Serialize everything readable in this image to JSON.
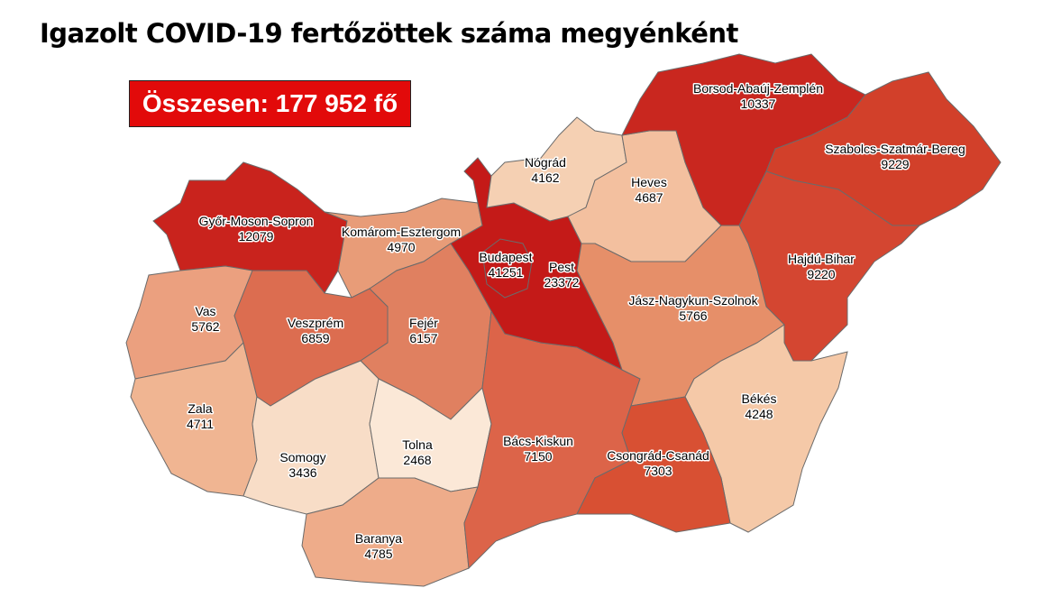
{
  "title": "Igazolt COVID-19 fertőzöttek száma megyénként",
  "total_label": "Összesen: 177 952 fő",
  "counties": [
    {
      "name": "Győr-Moson-Sopron",
      "value": "12079",
      "color": "#c9231d"
    },
    {
      "name": "Komárom-Esztergom",
      "value": "4970",
      "color": "#e89c78"
    },
    {
      "name": "Vas",
      "value": "5762",
      "color": "#eba07f"
    },
    {
      "name": "Zala",
      "value": "4711",
      "color": "#f0b592"
    },
    {
      "name": "Veszprém",
      "value": "6859",
      "color": "#dc6d50"
    },
    {
      "name": "Fejér",
      "value": "6157",
      "color": "#e08060"
    },
    {
      "name": "Somogy",
      "value": "3436",
      "color": "#f8ddc7"
    },
    {
      "name": "Tolna",
      "value": "2468",
      "color": "#fbe8d7"
    },
    {
      "name": "Baranya",
      "value": "4785",
      "color": "#eeac8a"
    },
    {
      "name": "Bács-Kiskun",
      "value": "7150",
      "color": "#dc6449"
    },
    {
      "name": "Pest",
      "value": "23372",
      "color": "#c41a18"
    },
    {
      "name": "Budapest",
      "value": "41251",
      "color": "#c41a18"
    },
    {
      "name": "Nógrád",
      "value": "4162",
      "color": "#f5d0b3"
    },
    {
      "name": "Heves",
      "value": "4687",
      "color": "#f3c09f"
    },
    {
      "name": "Borsod-Abaúj-Zemplén",
      "value": "10337",
      "color": "#c9271f"
    },
    {
      "name": "Szabolcs-Szatmár-Bereg",
      "value": "9229",
      "color": "#d2402a"
    },
    {
      "name": "Hajdú-Bihar",
      "value": "9220",
      "color": "#d44631"
    },
    {
      "name": "Jász-Nagykun-Szolnok",
      "value": "5766",
      "color": "#e68f69"
    },
    {
      "name": "Békés",
      "value": "4248",
      "color": "#f5c9a8"
    },
    {
      "name": "Csongrád-Csanád",
      "value": "7303",
      "color": "#d85033"
    }
  ]
}
